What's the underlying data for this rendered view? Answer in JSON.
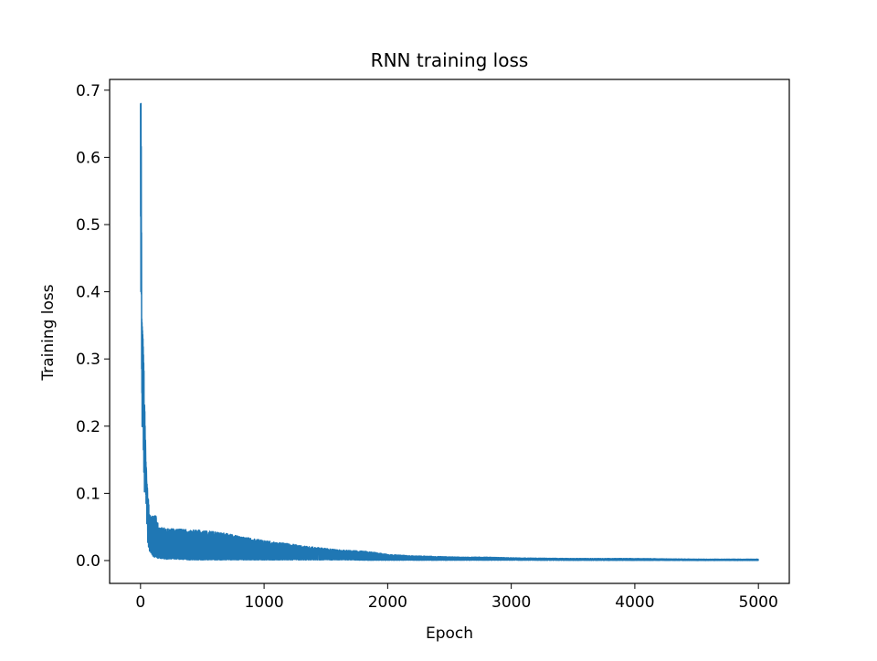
{
  "chart_data": {
    "type": "line",
    "title": "RNN training loss",
    "xlabel": "Epoch",
    "ylabel": "Training loss",
    "xlim": [
      -250,
      5250
    ],
    "ylim": [
      -0.034,
      0.716
    ],
    "xticks": [
      0,
      1000,
      2000,
      3000,
      4000,
      5000
    ],
    "xtick_labels": [
      "0",
      "1000",
      "2000",
      "3000",
      "4000",
      "5000"
    ],
    "yticks": [
      0.0,
      0.1,
      0.2,
      0.3,
      0.4,
      0.5,
      0.6,
      0.7
    ],
    "ytick_labels": [
      "0.0",
      "0.1",
      "0.2",
      "0.3",
      "0.4",
      "0.5",
      "0.6",
      "0.7"
    ],
    "grid": false,
    "legend": "none",
    "series": [
      {
        "color": "#1f77b4",
        "envelope": {
          "x": [
            0,
            5,
            10,
            20,
            30,
            40,
            50,
            60,
            70,
            80,
            100,
            120,
            150,
            200,
            300,
            400,
            500,
            600,
            700,
            800,
            900,
            1000,
            1100,
            1200,
            1300,
            1400,
            1500,
            1600,
            1700,
            1800,
            1900,
            2000,
            2200,
            2400,
            2600,
            2800,
            3000,
            3500,
            4000,
            4500,
            5000
          ],
          "upper": [
            0.68,
            0.68,
            0.36,
            0.33,
            0.27,
            0.18,
            0.13,
            0.1,
            0.08,
            0.07,
            0.065,
            0.07,
            0.05,
            0.048,
            0.047,
            0.046,
            0.045,
            0.043,
            0.04,
            0.036,
            0.033,
            0.03,
            0.027,
            0.025,
            0.022,
            0.02,
            0.018,
            0.016,
            0.015,
            0.014,
            0.012,
            0.009,
            0.007,
            0.006,
            0.005,
            0.005,
            0.004,
            0.003,
            0.003,
            0.002,
            0.002
          ],
          "lower": [
            0.47,
            0.27,
            0.2,
            0.15,
            0.1,
            0.06,
            0.04,
            0.025,
            0.015,
            0.01,
            0.005,
            0.004,
            0.003,
            0.002,
            0.002,
            0.001,
            0.001,
            0.001,
            0.001,
            0.001,
            0.001,
            0.001,
            0.001,
            0.001,
            0.001,
            0.001,
            0.001,
            0.001,
            0.001,
            0.0005,
            0.0005,
            0.0005,
            0.0005,
            0.0005,
            0.0005,
            0.0005,
            0.0005,
            0.0003,
            0.0003,
            0.0002,
            0.0002
          ]
        },
        "n_points": 5001
      }
    ]
  }
}
